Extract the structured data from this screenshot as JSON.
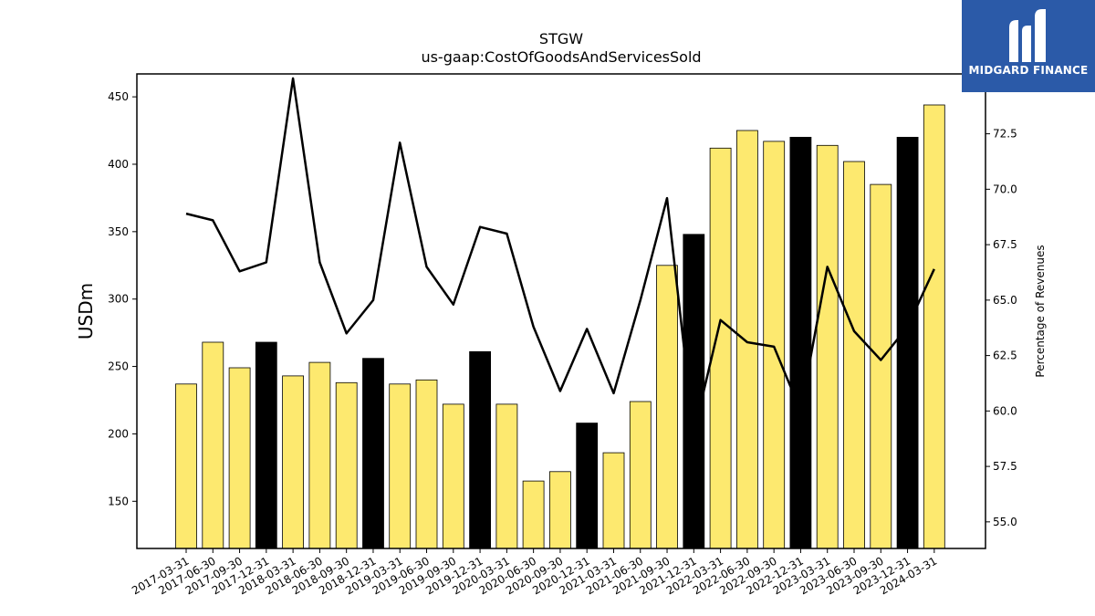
{
  "chart_data": {
    "type": "bar",
    "title": "STGW",
    "subtitle": "us-gaap:CostOfGoodsAndServicesSold",
    "ylabel": "USDm",
    "ylabel_right": "Percentage of Revenues",
    "ylim": [
      115,
      467
    ],
    "ylim_right": [
      53.8,
      75.2
    ],
    "yticks": [
      150,
      200,
      250,
      300,
      350,
      400,
      450
    ],
    "yticks_right": [
      55.0,
      57.5,
      60.0,
      62.5,
      65.0,
      67.5,
      70.0,
      72.5
    ],
    "categories": [
      "2017-03-31",
      "2017-06-30",
      "2017-09-30",
      "2017-12-31",
      "2018-03-31",
      "2018-06-30",
      "2018-09-30",
      "2018-12-31",
      "2019-03-31",
      "2019-06-30",
      "2019-09-30",
      "2019-12-31",
      "2020-03-31",
      "2020-06-30",
      "2020-09-30",
      "2020-12-31",
      "2021-03-31",
      "2021-06-30",
      "2021-09-30",
      "2021-12-31",
      "2022-03-31",
      "2022-06-30",
      "2022-09-30",
      "2022-12-31",
      "2023-03-31",
      "2023-06-30",
      "2023-09-30",
      "2023-12-31",
      "2024-03-31"
    ],
    "series": [
      {
        "values": [
          237,
          268,
          249,
          268,
          243,
          253,
          238,
          256,
          237,
          240,
          222,
          261,
          222,
          165,
          172,
          208,
          186,
          224,
          325,
          348,
          412,
          425,
          417,
          420,
          414,
          402,
          385,
          420,
          444
        ],
        "highlight": [
          false,
          false,
          false,
          true,
          false,
          false,
          false,
          true,
          false,
          false,
          false,
          true,
          false,
          false,
          false,
          true,
          false,
          false,
          false,
          true,
          false,
          false,
          false,
          true,
          false,
          false,
          false,
          true,
          false
        ],
        "color": "#fde96f",
        "highlight_color": "#000000"
      },
      {
        "values": [
          68.9,
          68.6,
          66.3,
          66.7,
          75.0,
          66.7,
          63.5,
          65.0,
          72.1,
          66.5,
          64.8,
          68.3,
          68.0,
          63.8,
          60.9,
          63.7,
          60.8,
          65.0,
          69.6,
          59.0,
          64.1,
          63.1,
          62.9,
          60.0,
          66.5,
          63.6,
          62.3,
          63.8,
          66.4
        ],
        "color": "#000000",
        "axis": "right"
      }
    ]
  },
  "logo": {
    "text": "MIDGARD FINANCE"
  }
}
